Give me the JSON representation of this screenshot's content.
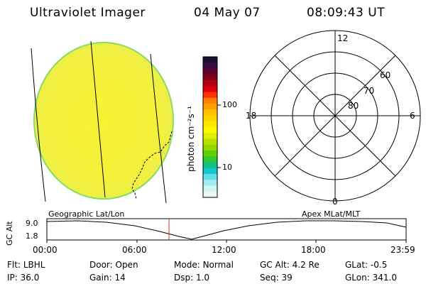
{
  "header": {
    "title": "Ultraviolet Imager",
    "date": "04 May 07",
    "time": "08:09:43 UT"
  },
  "colorbar": {
    "unit_label": "photon cm⁻²s⁻¹",
    "ticks": [
      "100",
      "10"
    ],
    "colors": [
      "#1a1030",
      "#3a0a3a",
      "#5a0030",
      "#800018",
      "#b00010",
      "#e00010",
      "#ff3000",
      "#ff8000",
      "#ffa000",
      "#ffc000",
      "#ffd400",
      "#ffe800",
      "#fff800",
      "#e0f000",
      "#b8e000",
      "#90d800",
      "#60d000",
      "#30c830",
      "#10c080",
      "#10c8c8",
      "#60e0e8",
      "#a0ecf0",
      "#d0f2f4",
      "#eef6f6"
    ]
  },
  "polar": {
    "lat_labels": [
      "60",
      "70",
      "80"
    ],
    "mlt_labels": {
      "top": "12",
      "left": "18",
      "right": "6",
      "bottom": "0"
    }
  },
  "timeline": {
    "ylabel": "GC Alt",
    "y_top": "9.0",
    "y_bottom": "1.8",
    "left_title": "Geographic Lat/Lon",
    "right_title": "Apex MLat/MLT",
    "x_ticks": [
      "00:00",
      "06:00",
      "12:00",
      "18:00",
      "23:59"
    ],
    "current_time_fraction": 0.3399
  },
  "status": {
    "row1": [
      {
        "label": "Flt:",
        "value": "LBHL"
      },
      {
        "label": "Door:",
        "value": "Open"
      },
      {
        "label": "Mode:",
        "value": "Normal"
      },
      {
        "label": "GC Alt:",
        "value": "4.2 Re"
      },
      {
        "label": "GLat:",
        "value": "-0.5"
      }
    ],
    "row2": [
      {
        "label": "IP:",
        "value": "36.0"
      },
      {
        "label": "Gain:",
        "value": "14"
      },
      {
        "label": "Dsp:",
        "value": "1.0"
      },
      {
        "label": "Seq:",
        "value": "39"
      },
      {
        "label": "GLon:",
        "value": "341.0"
      }
    ]
  }
}
